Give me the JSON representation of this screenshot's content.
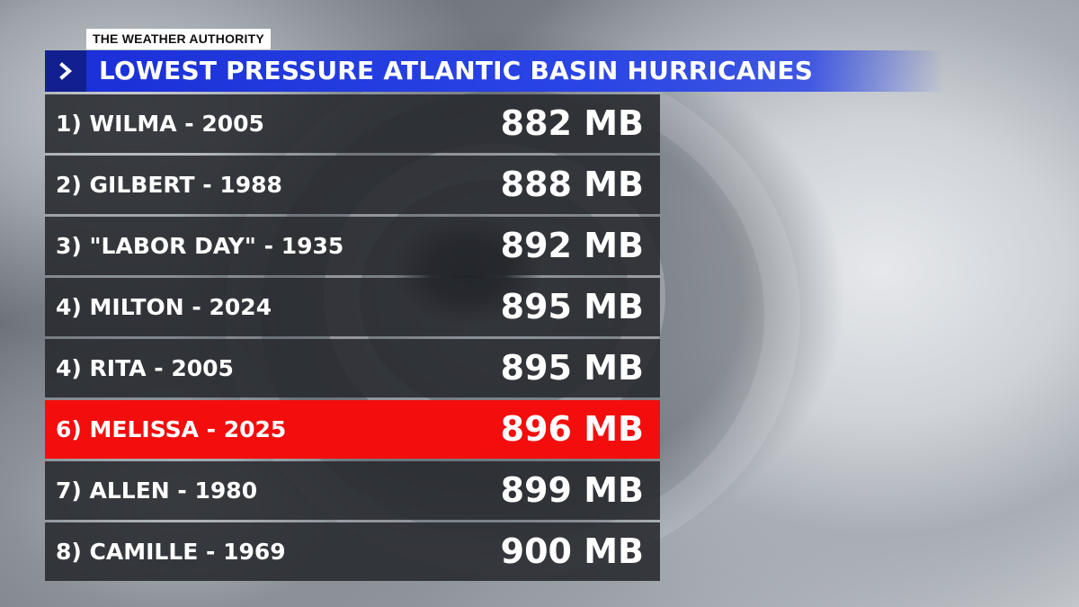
{
  "header": {
    "badge": "THE WEATHER AUTHORITY",
    "title": "LOWEST PRESSURE ATLANTIC BASIN HURRICANES",
    "icon": "chevron-right-icon"
  },
  "colors": {
    "title_bar": "#2a45e6",
    "chevron_box": "#12208f",
    "row_default": "#26282c",
    "row_highlight": "#f30d0d"
  },
  "rows": [
    {
      "label": "1) WILMA - 2005",
      "value": "882 MB",
      "highlight": false
    },
    {
      "label": "2) GILBERT - 1988",
      "value": "888 MB",
      "highlight": false
    },
    {
      "label": "3) \"LABOR DAY\" - 1935",
      "value": "892 MB",
      "highlight": false
    },
    {
      "label": "4) MILTON - 2024",
      "value": "895 MB",
      "highlight": false
    },
    {
      "label": "4) RITA - 2005",
      "value": "895 MB",
      "highlight": false
    },
    {
      "label": "6) MELISSA - 2025",
      "value": "896 MB",
      "highlight": true
    },
    {
      "label": "7) ALLEN - 1980",
      "value": "899 MB",
      "highlight": false
    },
    {
      "label": "8) CAMILLE - 1969",
      "value": "900 MB",
      "highlight": false
    }
  ]
}
